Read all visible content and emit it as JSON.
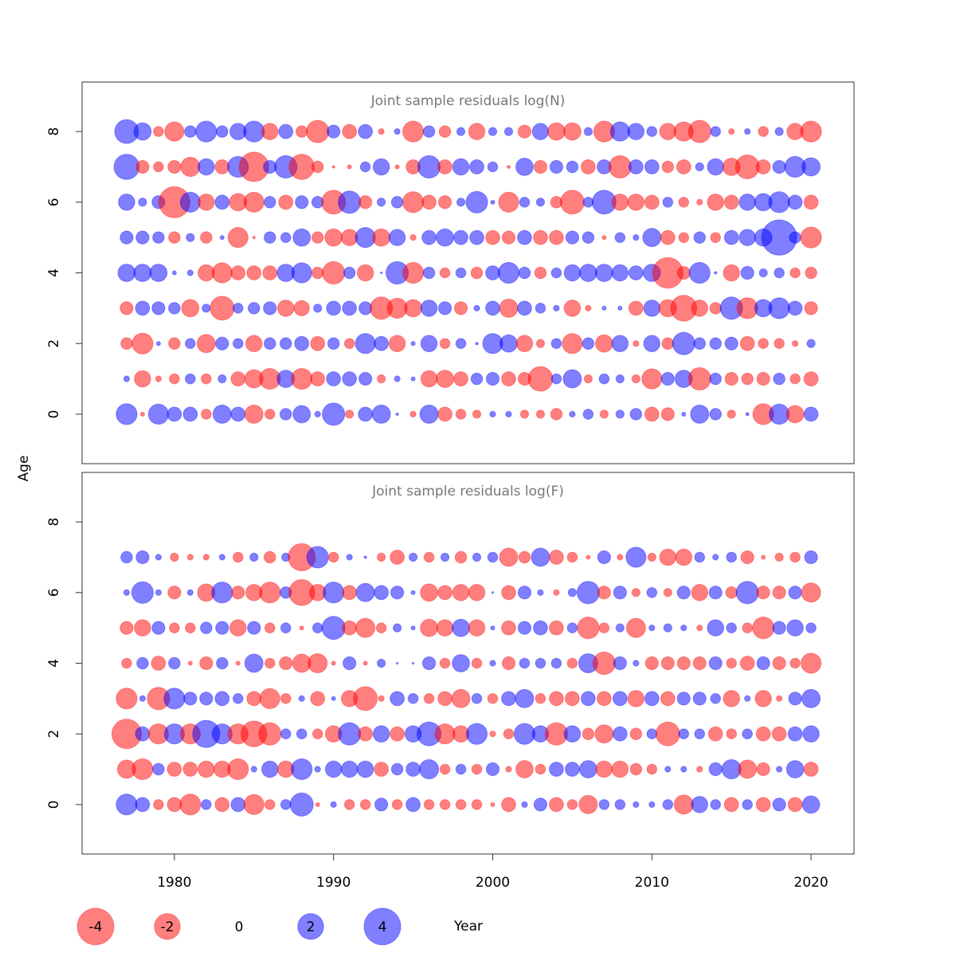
{
  "chart_data": [
    {
      "type": "bubble",
      "title": "Joint sample residuals log(N)",
      "x": [
        1977,
        1978,
        1979,
        1980,
        1981,
        1982,
        1983,
        1984,
        1985,
        1986,
        1987,
        1988,
        1989,
        1990,
        1991,
        1992,
        1993,
        1994,
        1995,
        1996,
        1997,
        1998,
        1999,
        2000,
        2001,
        2002,
        2003,
        2004,
        2005,
        2006,
        2007,
        2008,
        2009,
        2010,
        2011,
        2012,
        2013,
        2014,
        2015,
        2016,
        2017,
        2018,
        2019,
        2020
      ],
      "y": [
        0,
        1,
        2,
        3,
        4,
        5,
        6,
        7,
        8
      ],
      "values": [
        [
          1.3,
          -0.05,
          1.2,
          0.6,
          0.6,
          -0.3,
          1.0,
          0.6,
          -1.0,
          -0.3,
          0.4,
          0.9,
          0.1,
          1.5,
          -0.2,
          0.6,
          1.0,
          0.02,
          -0.1,
          1.0,
          -0.6,
          -0.3,
          -0.2,
          0.1,
          0.1,
          -0.2,
          -0.2,
          -0.4,
          0.1,
          0.3,
          -0.2,
          0.2,
          0.4,
          -0.6,
          -0.5,
          0.05,
          1.0,
          0.4,
          -0.2,
          0.03,
          -1.3,
          1.2,
          -0.9,
          0.6
        ],
        [
          0.1,
          -0.8,
          -0.1,
          -0.3,
          0.3,
          -0.3,
          0.2,
          -0.6,
          -1.0,
          -1.3,
          0.9,
          -1.3,
          -0.6,
          0.6,
          0.6,
          0.5,
          -0.2,
          0.1,
          0.05,
          -0.8,
          -0.9,
          -0.6,
          0.4,
          0.5,
          -0.6,
          -0.5,
          -1.8,
          0.3,
          1.0,
          -0.2,
          0.3,
          0.2,
          -0.2,
          -1.2,
          0.5,
          0.9,
          -1.5,
          0.4,
          -0.5,
          -0.4,
          -0.5,
          0.4,
          -0.3,
          -0.6
        ],
        [
          -0.4,
          -1.3,
          0.05,
          -0.4,
          0.3,
          -1.0,
          0.5,
          0.3,
          -0.8,
          0.4,
          0.4,
          0.6,
          -0.6,
          0.4,
          -0.3,
          1.2,
          0.6,
          -0.8,
          0.05,
          0.8,
          -0.3,
          0.3,
          0.02,
          1.2,
          0.9,
          -0.8,
          -0.2,
          0.3,
          -1.2,
          0.4,
          -0.9,
          0.8,
          -0.1,
          0.8,
          -0.4,
          1.5,
          0.4,
          0.4,
          0.5,
          -0.6,
          -0.3,
          -0.3,
          -0.1,
          0.2
        ],
        [
          -0.5,
          0.6,
          0.5,
          0.4,
          -0.9,
          0.2,
          -1.7,
          0.3,
          0.4,
          0.5,
          -0.8,
          -0.7,
          0.2,
          0.6,
          0.6,
          0.5,
          -1.5,
          -1.2,
          -0.9,
          0.8,
          0.5,
          -0.5,
          0.1,
          0.6,
          -1.0,
          0.6,
          0.3,
          0.1,
          -0.8,
          -0.1,
          0.05,
          0.05,
          -0.6,
          0.8,
          -0.9,
          -2.0,
          -0.8,
          -0.4,
          1.5,
          -1.3,
          0.9,
          1.3,
          0.6,
          -0.5
        ],
        [
          0.9,
          0.9,
          0.9,
          0.05,
          0.1,
          -0.8,
          -1.2,
          -0.6,
          -0.6,
          -0.6,
          0.9,
          1.2,
          -0.4,
          -1.5,
          0.4,
          -0.8,
          0.01,
          1.5,
          -1.3,
          0.4,
          -0.3,
          0.3,
          -0.4,
          0.6,
          1.3,
          0.4,
          -0.4,
          0.3,
          0.8,
          0.9,
          0.9,
          0.8,
          0.6,
          0.9,
          -2.8,
          -0.5,
          1.3,
          0.02,
          -0.8,
          0.5,
          0.2,
          0.3,
          -0.3,
          -0.4
        ],
        [
          0.5,
          0.5,
          0.4,
          -0.4,
          0.2,
          -0.4,
          0.05,
          -1.2,
          -0.02,
          0.4,
          0.3,
          0.9,
          -0.4,
          -0.9,
          -0.8,
          1.2,
          -0.9,
          0.8,
          -0.1,
          0.6,
          0.9,
          0.6,
          0.6,
          -0.6,
          -0.5,
          0.6,
          -0.6,
          -0.6,
          0.5,
          0.4,
          -0.05,
          0.3,
          0.1,
          1.0,
          -0.6,
          -0.3,
          0.4,
          -0.3,
          0.6,
          0.8,
          0.9,
          3.7,
          0.4,
          -1.3
        ],
        [
          0.8,
          0.2,
          0.5,
          -2.9,
          1.2,
          -0.8,
          0.6,
          -0.9,
          -1.2,
          0.4,
          -0.6,
          0.5,
          0.4,
          -1.7,
          1.5,
          -0.5,
          0.2,
          0.4,
          -1.3,
          -0.6,
          -0.5,
          0.2,
          1.4,
          0.05,
          -1.2,
          0.3,
          0.2,
          -0.4,
          -1.7,
          0.3,
          1.7,
          -0.8,
          -0.8,
          -0.6,
          0.3,
          -0.3,
          -0.1,
          -0.8,
          -0.6,
          0.8,
          0.9,
          1.3,
          0.6,
          -0.6
        ],
        [
          1.9,
          -0.5,
          -0.3,
          -0.5,
          -1.1,
          0.8,
          -0.6,
          1.3,
          -2.6,
          0.5,
          1.5,
          -1.9,
          -0.4,
          -0.02,
          -0.05,
          0.3,
          0.8,
          -0.05,
          -0.6,
          1.5,
          -0.6,
          0.8,
          0.6,
          0.3,
          -0.03,
          0.9,
          -0.5,
          0.5,
          0.4,
          -0.6,
          0.6,
          -1.5,
          0.6,
          0.6,
          -0.4,
          -0.6,
          0.2,
          0.8,
          -0.9,
          -1.7,
          -0.6,
          0.5,
          1.3,
          1.0
        ],
        [
          1.7,
          0.9,
          -0.3,
          -1.1,
          0.4,
          1.3,
          0.4,
          0.8,
          1.3,
          -0.8,
          0.6,
          -0.4,
          -1.5,
          0.5,
          -0.6,
          0.6,
          -0.1,
          0.1,
          -1.3,
          0.4,
          -0.4,
          0.2,
          -0.8,
          0.2,
          0.2,
          -0.5,
          0.8,
          -0.9,
          -0.9,
          0.2,
          -1.3,
          1.1,
          0.8,
          0.3,
          -0.8,
          -1.1,
          -1.5,
          0.3,
          -0.1,
          0.1,
          -0.3,
          0.2,
          -0.8,
          -1.3
        ]
      ],
      "xlim": [
        1974.2,
        2022.7
      ],
      "ylim": [
        -1.4,
        9.4
      ],
      "yticks": [
        0,
        2,
        4,
        6,
        8
      ],
      "colors": {
        "positive": "#0000ff",
        "negative": "#ff0000"
      }
    },
    {
      "type": "bubble",
      "title": "Joint sample residuals log(F)",
      "x": [
        1977,
        1978,
        1979,
        1980,
        1981,
        1982,
        1983,
        1984,
        1985,
        1986,
        1987,
        1988,
        1989,
        1990,
        1991,
        1992,
        1993,
        1994,
        1995,
        1996,
        1997,
        1998,
        1999,
        2000,
        2001,
        2002,
        2003,
        2004,
        2005,
        2006,
        2007,
        2008,
        2009,
        2010,
        2011,
        2012,
        2013,
        2014,
        2015,
        2016,
        2017,
        2018,
        2019,
        2020
      ],
      "y": [
        0,
        1,
        2,
        3,
        4,
        5,
        6,
        7
      ],
      "values": [
        [
          1.3,
          0.6,
          -0.3,
          -0.6,
          -1.3,
          0.3,
          -0.6,
          0.6,
          -1.2,
          -0.3,
          0.3,
          1.6,
          -0.05,
          0.1,
          -0.3,
          -0.3,
          0.5,
          -0.3,
          0.6,
          -0.3,
          -0.3,
          -0.3,
          -0.3,
          -0.05,
          -0.6,
          0.1,
          0.5,
          -0.6,
          -0.3,
          -1.0,
          0.3,
          0.3,
          0.1,
          0.1,
          0.3,
          -1.1,
          0.8,
          0.3,
          -0.6,
          0.3,
          -0.6,
          0.5,
          -0.6,
          0.9
        ],
        [
          -1.0,
          -1.3,
          0.4,
          -0.6,
          -0.6,
          -0.8,
          -0.8,
          -1.3,
          0.1,
          0.8,
          -0.8,
          1.3,
          0.1,
          0.8,
          0.8,
          0.8,
          -0.6,
          0.4,
          0.6,
          1.1,
          -0.3,
          0.3,
          -0.3,
          0.5,
          -0.1,
          -0.9,
          -0.3,
          0.6,
          0.6,
          0.9,
          -0.8,
          -0.8,
          -0.4,
          -0.3,
          0.1,
          0.1,
          -0.1,
          0.5,
          1.1,
          -1.0,
          -0.5,
          0.1,
          0.9,
          -0.6
        ],
        [
          -2.6,
          0.6,
          -1.2,
          1.2,
          -1.2,
          2.2,
          1.2,
          -1.2,
          -2.0,
          -1.5,
          0.3,
          0.3,
          -0.3,
          -0.8,
          1.5,
          -0.6,
          0.8,
          -0.6,
          0.8,
          1.7,
          -1.2,
          -0.8,
          1.3,
          -0.1,
          -0.3,
          1.3,
          0.8,
          -1.5,
          0.8,
          -0.4,
          -1.0,
          0.6,
          -0.4,
          0.3,
          -1.7,
          0.3,
          0.3,
          -0.6,
          -0.3,
          0.3,
          -0.6,
          -0.6,
          0.6,
          0.8
        ],
        [
          -1.3,
          0.1,
          -1.5,
          1.3,
          0.5,
          0.5,
          0.6,
          0.3,
          -0.6,
          -1.2,
          -0.3,
          0.1,
          -0.6,
          0.05,
          -0.8,
          -1.7,
          -0.1,
          0.6,
          0.3,
          -0.3,
          -0.6,
          -1.0,
          0.3,
          -0.3,
          0.6,
          1.0,
          -0.3,
          -0.6,
          -0.6,
          0.6,
          -0.6,
          0.6,
          -0.8,
          0.6,
          -0.6,
          0.5,
          0.5,
          0.3,
          -0.8,
          0.1,
          -0.8,
          -0.1,
          0.5,
          1.0
        ],
        [
          -0.3,
          0.4,
          -0.6,
          0.4,
          -0.05,
          -0.5,
          0.4,
          -0.05,
          1.0,
          -0.3,
          -0.5,
          -1.0,
          -1.1,
          -0.05,
          0.5,
          -0.05,
          0.2,
          0.01,
          0.01,
          0.5,
          -0.3,
          0.9,
          -0.3,
          0.1,
          -0.5,
          0.3,
          0.3,
          0.3,
          -0.3,
          1.1,
          -1.5,
          0.5,
          0.1,
          -0.5,
          -0.5,
          -0.5,
          -0.5,
          0.5,
          -0.3,
          -0.6,
          0.5,
          -0.5,
          -0.3,
          -1.2
        ],
        [
          -0.5,
          -0.8,
          0.5,
          -0.3,
          -0.3,
          0.4,
          0.5,
          -0.8,
          0.5,
          -0.3,
          0.3,
          -0.05,
          0.3,
          1.6,
          -0.6,
          -1.1,
          -0.3,
          0.2,
          0.05,
          -0.9,
          -0.8,
          0.9,
          -0.8,
          0.05,
          -0.6,
          0.5,
          0.6,
          -0.6,
          0.3,
          -1.4,
          -0.3,
          0.2,
          -1.1,
          0.1,
          0.2,
          0.1,
          -0.1,
          0.8,
          0.3,
          -0.3,
          -1.4,
          0.5,
          0.8,
          0.3
        ],
        [
          0.1,
          1.4,
          0.1,
          -0.5,
          0.1,
          -0.9,
          1.3,
          -0.5,
          -0.8,
          -1.3,
          0.4,
          -2.0,
          -0.8,
          1.3,
          -0.6,
          1.0,
          0.6,
          0.5,
          0.05,
          -0.9,
          -0.6,
          -0.8,
          -0.8,
          0.01,
          -0.6,
          0.5,
          0.1,
          -0.1,
          0.2,
          1.5,
          -0.5,
          0.5,
          -0.2,
          0.3,
          -0.2,
          0.5,
          -0.8,
          0.5,
          -0.4,
          1.5,
          -0.5,
          -0.5,
          0.5,
          -1.1
        ],
        [
          0.4,
          0.5,
          0.1,
          -0.2,
          -0.1,
          -0.1,
          0.1,
          -0.3,
          0.2,
          -0.4,
          0.2,
          -2.2,
          1.4,
          -0.3,
          0.1,
          0.02,
          -0.2,
          -0.6,
          0.2,
          -0.3,
          0.2,
          -0.4,
          0.2,
          0.3,
          -1.0,
          -0.4,
          1.0,
          -0.6,
          -0.3,
          -0.05,
          0.5,
          -0.1,
          1.2,
          -0.2,
          -0.8,
          -0.8,
          0.3,
          0.1,
          0.3,
          -0.5,
          -0.05,
          -0.2,
          -0.3,
          0.5
        ]
      ],
      "xlim": [
        1974.2,
        2022.7
      ],
      "xticks": [
        1980,
        1990,
        2000,
        2010,
        2020
      ],
      "ylim": [
        -1.4,
        9.4
      ],
      "yticks": [
        0,
        2,
        4,
        6,
        8
      ],
      "colors": {
        "positive": "#0000ff",
        "negative": "#ff0000"
      }
    }
  ],
  "xlabel": "Year",
  "ylabel": "Age",
  "legend": {
    "values": [
      -4,
      -2,
      0,
      2,
      4
    ]
  }
}
